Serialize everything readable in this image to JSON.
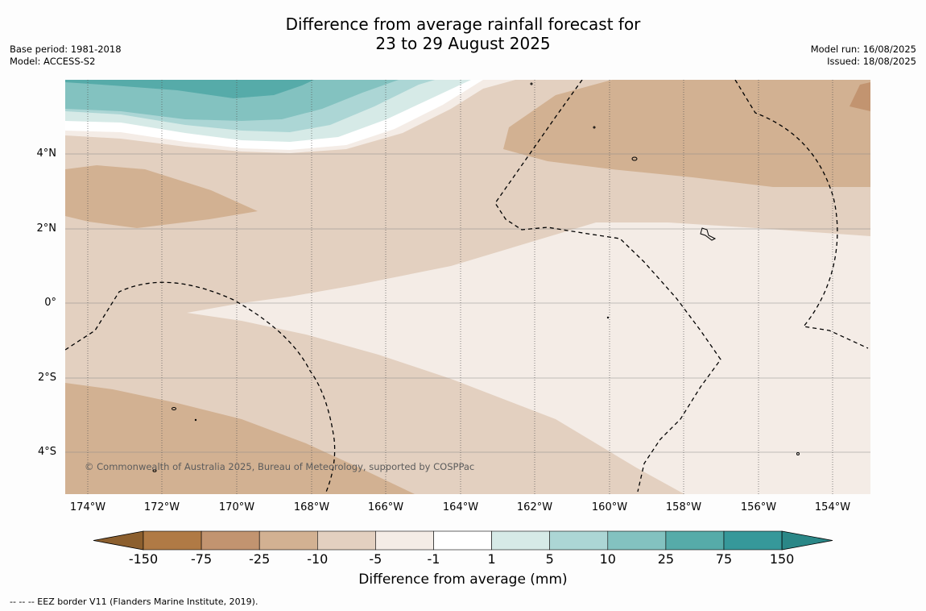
{
  "title_line1": "Difference from average rainfall forecast for",
  "title_line2": "23 to 29 August 2025",
  "meta_left": {
    "base_period": "Base period: 1981-2018",
    "model": "Model: ACCESS-S2"
  },
  "meta_right": {
    "model_run": "Model run: 16/08/2025",
    "issued": "Issued: 18/08/2025"
  },
  "map": {
    "lat_labels": [
      "4°N",
      "2°N",
      "0°",
      "2°S",
      "4°S"
    ],
    "lon_labels": [
      "174°W",
      "172°W",
      "170°W",
      "168°W",
      "166°W",
      "164°W",
      "162°W",
      "160°W",
      "158°W",
      "156°W",
      "154°W"
    ],
    "copyright": "© Commonwealth of Australia 2025, Bureau of Meteorology, supported by COSPPac"
  },
  "colorbar": {
    "title": "Difference from average (mm)",
    "labels": [
      "-150",
      "-75",
      "-25",
      "-10",
      "-5",
      "-1",
      "1",
      "5",
      "10",
      "25",
      "75",
      "150"
    ],
    "colors": [
      "#8c5f2e",
      "#b07a45",
      "#c29470",
      "#d2b192",
      "#e3d0c0",
      "#f4ece6",
      "#ffffff",
      "#d6eae7",
      "#acd6d5",
      "#83c2c0",
      "#56aba9",
      "#36989a",
      "#2a8787"
    ]
  },
  "footnote": "--  --  -- EEZ border V11 (Flanders Marine Institute, 2019)."
}
